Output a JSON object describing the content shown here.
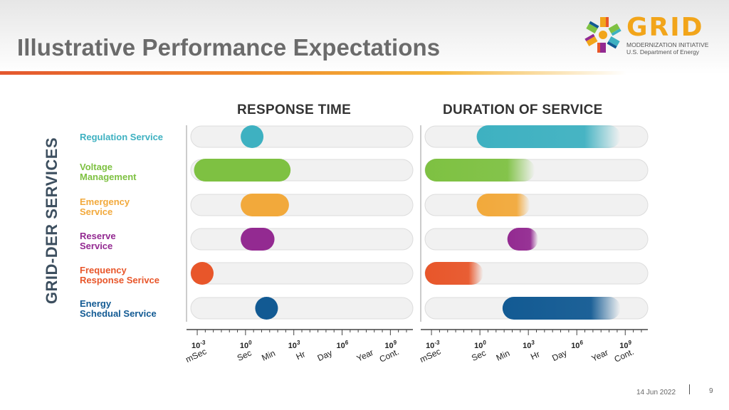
{
  "title": "Illustrative Performance Expectations",
  "logo": {
    "word": "GRID",
    "line1": "MODERNIZATION INITIATIVE",
    "line2": "U.S. Department of Energy"
  },
  "row_axis_label": "GRID-DER SERVICES",
  "services": [
    {
      "label": [
        "Regulation Service"
      ],
      "color": "#3eb1c1"
    },
    {
      "label": [
        "Voltage",
        "Management"
      ],
      "color": "#7ec142"
    },
    {
      "label": [
        "Emergency",
        "Service"
      ],
      "color": "#f2a93b"
    },
    {
      "label": [
        "Reserve",
        "Service"
      ],
      "color": "#932a91"
    },
    {
      "label": [
        "Frequency",
        "Response Serivce"
      ],
      "color": "#e8562a"
    },
    {
      "label": [
        "Energy",
        "Schedual Service"
      ],
      "color": "#125a93"
    }
  ],
  "chart_data": [
    {
      "type": "bar",
      "title": "RESPONSE TIME",
      "scale": "log10",
      "xlim": [
        -3.4,
        10.4
      ],
      "tick_exponents": [
        -3,
        0,
        3,
        6,
        9
      ],
      "tick_labels": [
        "10-3",
        "100",
        "103",
        "106",
        "109"
      ],
      "tick_superscripts": [
        "-3",
        "0",
        "3",
        "6",
        "9"
      ],
      "unit_labels": [
        {
          "text": "mSec",
          "at": -3
        },
        {
          "text": "Sec",
          "at": 0
        },
        {
          "text": "Min",
          "at": 1.5
        },
        {
          "text": "Hr",
          "at": 3.5
        },
        {
          "text": "Day",
          "at": 5
        },
        {
          "text": "Year",
          "at": 7.5
        },
        {
          "text": "Cont.",
          "at": 9
        }
      ],
      "ranges": [
        {
          "start": -0.3,
          "end": 0.3,
          "fade": false
        },
        {
          "start": -3.2,
          "end": 2.8,
          "fade": false
        },
        {
          "start": -0.3,
          "end": 2.7,
          "fade": false
        },
        {
          "start": -0.3,
          "end": 1.8,
          "fade": false
        },
        {
          "start": -3.4,
          "end": -2.5,
          "fade": false
        },
        {
          "start": 0.6,
          "end": 1.5,
          "fade": false
        }
      ]
    },
    {
      "type": "bar",
      "title": "DURATION OF SERVICE",
      "scale": "log10",
      "xlim": [
        -3.4,
        10.4
      ],
      "tick_exponents": [
        -3,
        0,
        3,
        6,
        9
      ],
      "tick_labels": [
        "10-3",
        "100",
        "103",
        "106",
        "109"
      ],
      "tick_superscripts": [
        "-3",
        "0",
        "3",
        "6",
        "9"
      ],
      "unit_labels": [
        {
          "text": "mSec",
          "at": -3
        },
        {
          "text": "Sec",
          "at": 0
        },
        {
          "text": "Min",
          "at": 1.5
        },
        {
          "text": "Hr",
          "at": 3.5
        },
        {
          "text": "Day",
          "at": 5
        },
        {
          "text": "Year",
          "at": 7.5
        },
        {
          "text": "Cont.",
          "at": 9
        }
      ],
      "ranges": [
        {
          "start": -0.2,
          "end": 8.7,
          "fade": true
        },
        {
          "start": -3.4,
          "end": 3.4,
          "fade": true
        },
        {
          "start": -0.2,
          "end": 3.1,
          "fade": true
        },
        {
          "start": 1.7,
          "end": 3.6,
          "fade": true
        },
        {
          "start": -3.4,
          "end": 0.2,
          "fade": true
        },
        {
          "start": 1.4,
          "end": 8.7,
          "fade": true
        }
      ]
    }
  ],
  "footer": {
    "date": "14 Jun 2022",
    "page": "9"
  }
}
